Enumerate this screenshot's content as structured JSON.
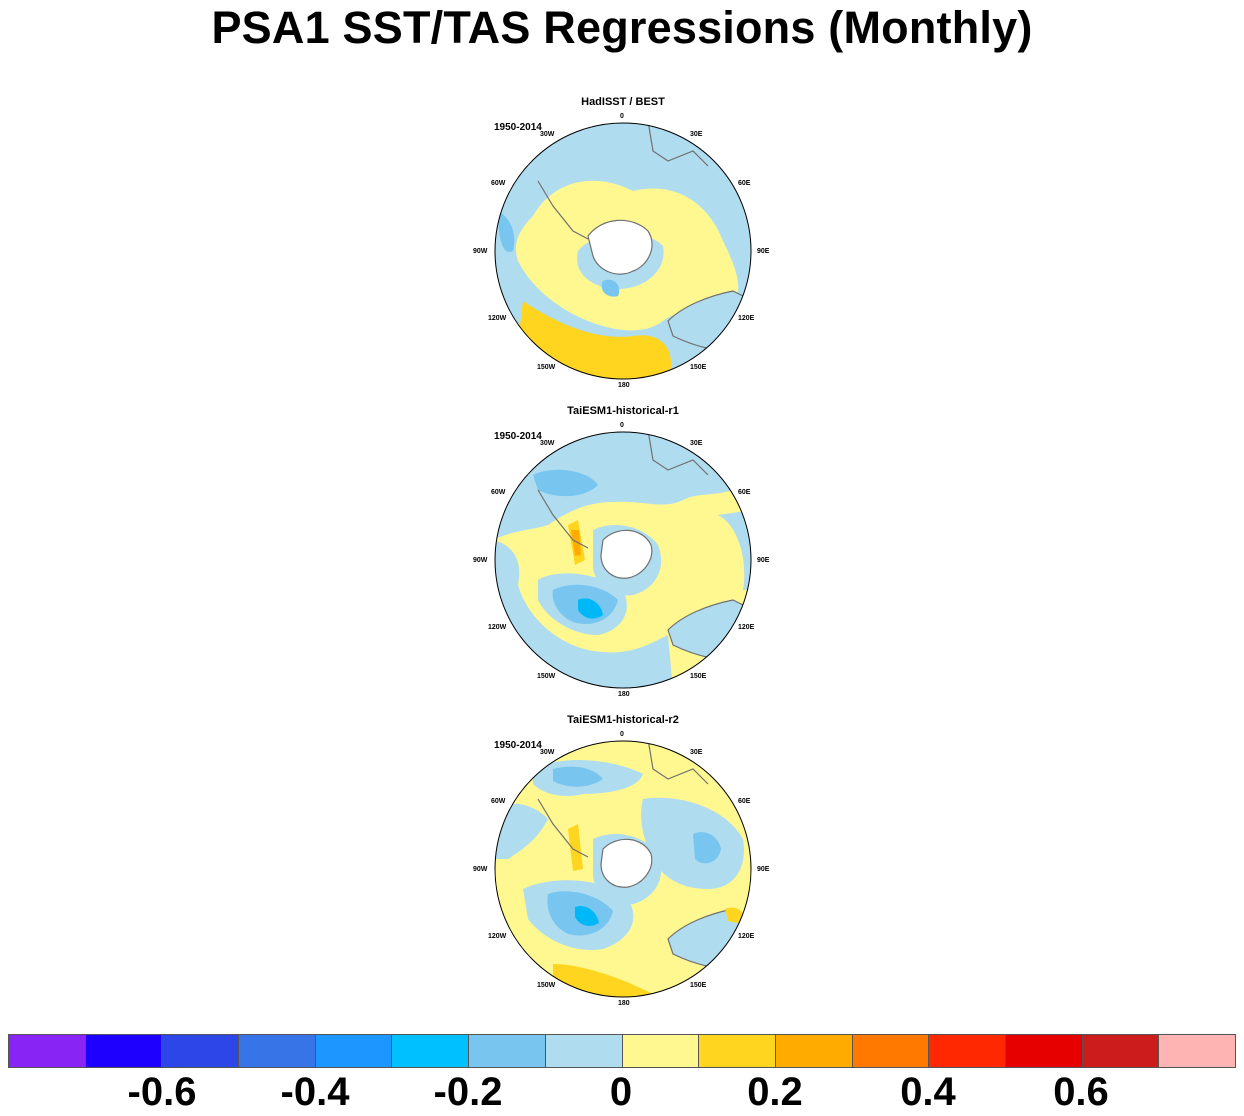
{
  "title": "PSA1 SST/TAS Regressions (Monthly)",
  "colors": {
    "ocean_neg": "#b0dcf0",
    "ocean_neg2": "#78c6f0",
    "ocean_neg3": "#00b8f8",
    "ocean_pos": "#fff890",
    "ocean_pos2": "#ffd520",
    "ocean_pos3": "#ffab00",
    "coast": "#707070"
  },
  "panels": [
    {
      "title": "HadISST / BEST",
      "period": "1950-2014"
    },
    {
      "title": "TaiESM1-historical-r1",
      "period": "1950-2014"
    },
    {
      "title": "TaiESM1-historical-r2",
      "period": "1950-2014"
    }
  ],
  "longitude_labels": [
    "0",
    "30E",
    "60E",
    "90E",
    "120E",
    "150E",
    "180",
    "150W",
    "120W",
    "90W",
    "60W",
    "30W"
  ],
  "colorbar": {
    "colors": [
      "#8824f4",
      "#1e00ff",
      "#2c46e8",
      "#3674e8",
      "#1e96ff",
      "#00c0ff",
      "#78c6f0",
      "#b0dcf0",
      "#fff890",
      "#ffd520",
      "#ffab00",
      "#ff7800",
      "#ff2800",
      "#e60000",
      "#cc1c1c",
      "#ffb4b4"
    ],
    "labels": [
      "-0.6",
      "-0.4",
      "-0.2",
      "0",
      "0.2",
      "0.4",
      "0.6"
    ]
  }
}
